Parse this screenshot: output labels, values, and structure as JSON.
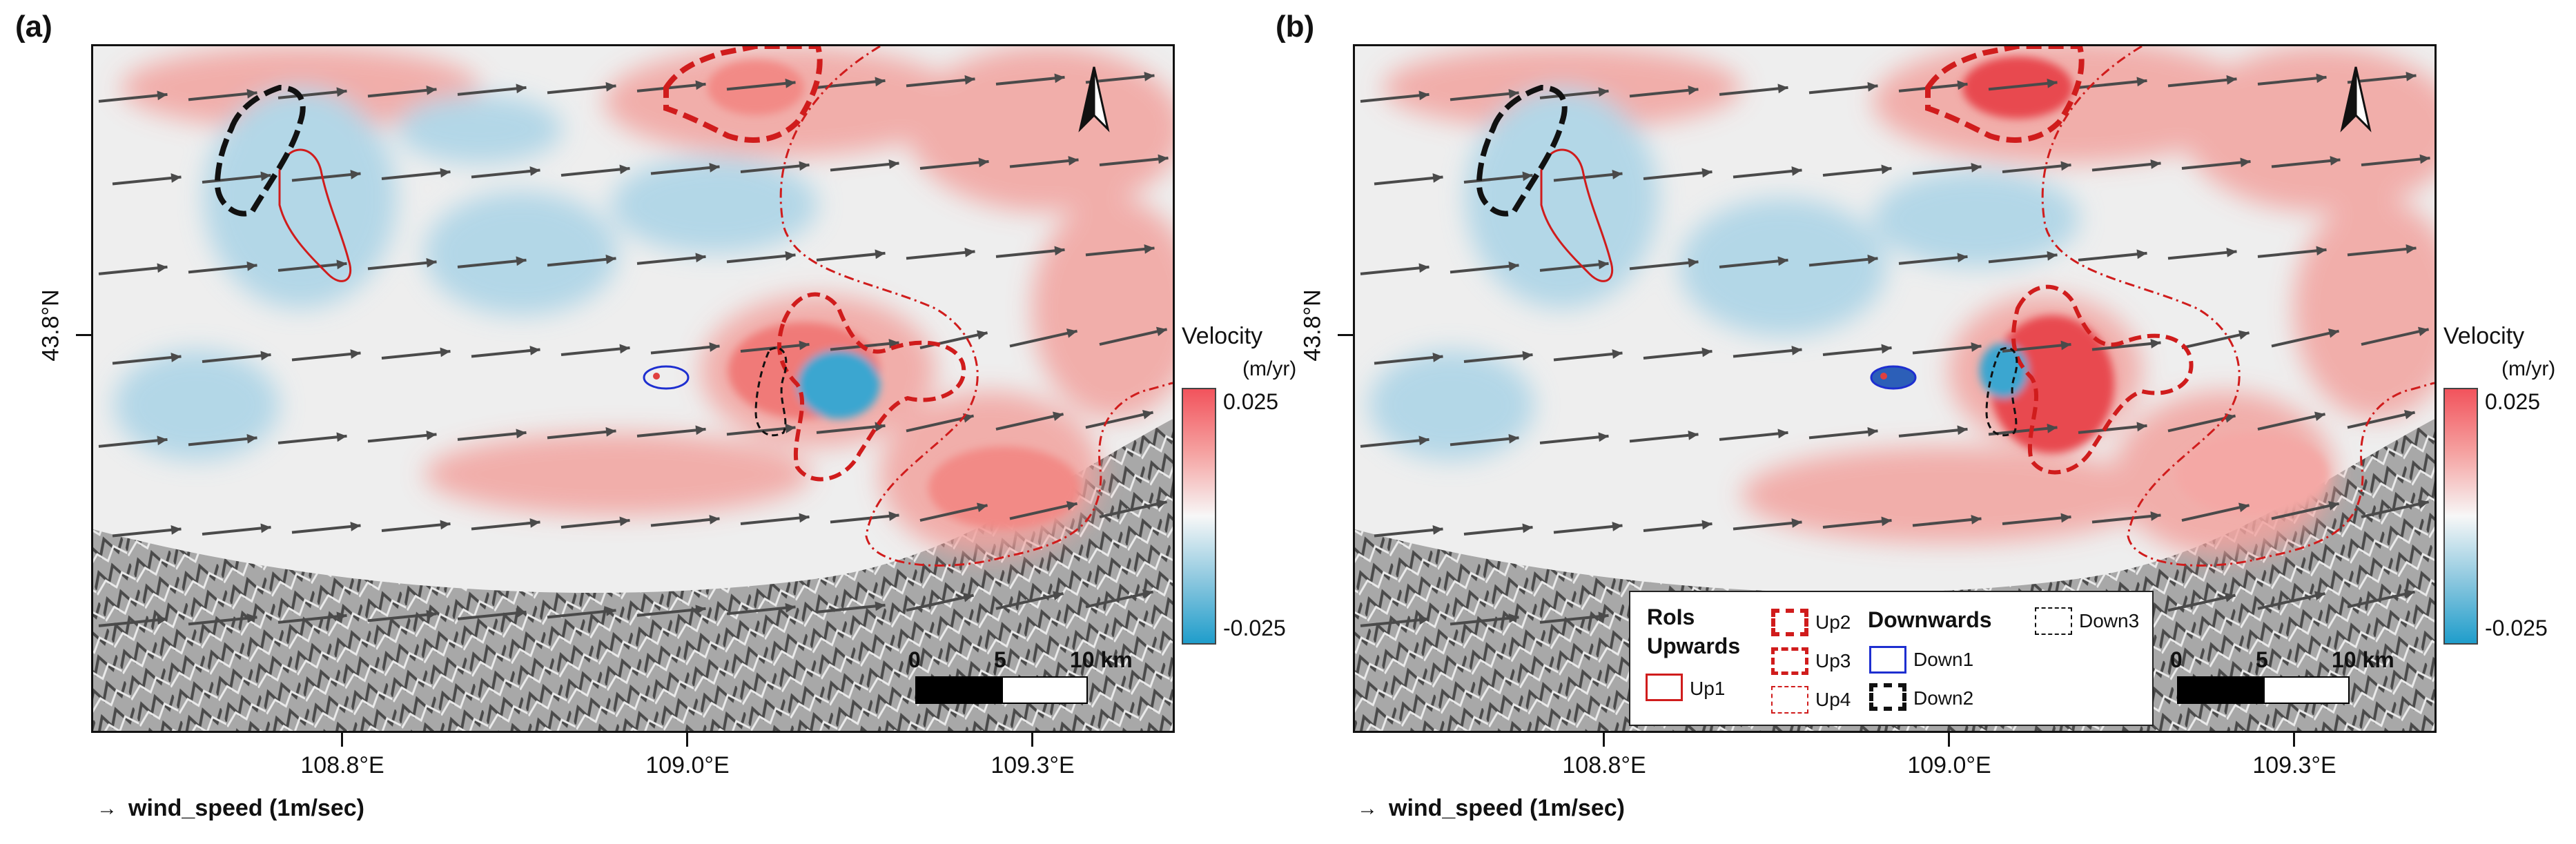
{
  "panels": [
    {
      "label": "(a)"
    },
    {
      "label": "(b)"
    }
  ],
  "axes": {
    "lat_label": "43.8°N",
    "lon_labels": [
      "108.8°E",
      "109.0°E",
      "109.3°E"
    ]
  },
  "wind_key": {
    "arrow": "→",
    "label": "wind_speed (1m/sec)"
  },
  "colorbar": {
    "title": "Velocity",
    "unit": "(m/yr)",
    "max": "0.025",
    "min": "-0.025",
    "colors": [
      "#f2535c",
      "#f7f7f7",
      "#1f9dcb"
    ]
  },
  "scalebar": {
    "labels": [
      "0",
      "5",
      "10 km"
    ]
  },
  "legend": {
    "title": "RoIs",
    "upwards": "Upwards",
    "downwards": "Downwards",
    "items": [
      "Up1",
      "Up2",
      "Up3",
      "Up4",
      "Down1",
      "Down2",
      "Down3"
    ]
  },
  "colors": {
    "upward_roi": "#d01c1c",
    "down1": "#1e2fd0",
    "down_black": "#111111",
    "arrow": "#4a4a4a"
  },
  "icons": [
    "north-arrow-icon",
    "wind-arrow-icon"
  ]
}
